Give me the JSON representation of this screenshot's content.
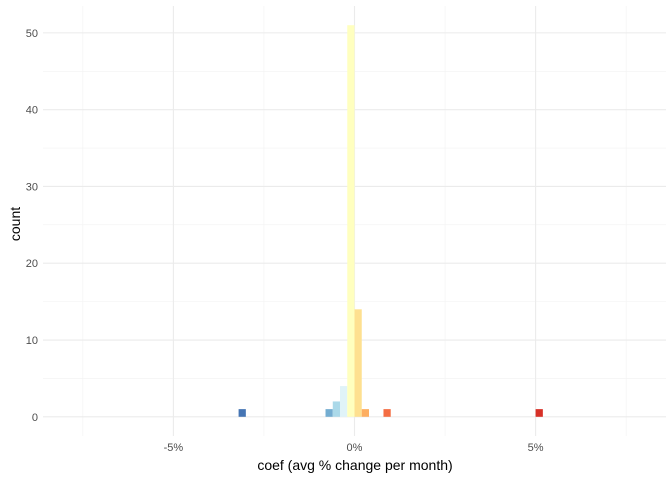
{
  "chart_data": {
    "type": "bar",
    "xlabel": "coef (avg % change per month)",
    "ylabel": "count",
    "xlim": [
      -8.6,
      8.6
    ],
    "ylim": [
      -2.5,
      53.5
    ],
    "x_ticks": [
      {
        "value": -5,
        "label": "-5%"
      },
      {
        "value": 0,
        "label": "0%"
      },
      {
        "value": 5,
        "label": "5%"
      }
    ],
    "x_minor_ticks": [
      -7.5,
      -2.5,
      2.5,
      7.5
    ],
    "y_ticks": [
      0,
      10,
      20,
      30,
      40,
      50
    ],
    "y_minor_ticks": [
      5,
      15,
      25,
      35,
      45
    ],
    "grid": true,
    "bin_width": 0.2,
    "bars": [
      {
        "x": -3.1,
        "count": 1,
        "color": "#4575b4"
      },
      {
        "x": -0.7,
        "count": 1,
        "color": "#74add1"
      },
      {
        "x": -0.5,
        "count": 2,
        "color": "#abd9e9"
      },
      {
        "x": -0.3,
        "count": 4,
        "color": "#e0f3f8"
      },
      {
        "x": -0.1,
        "count": 51,
        "color": "#ffffbf"
      },
      {
        "x": 0.1,
        "count": 14,
        "color": "#fee090"
      },
      {
        "x": 0.3,
        "count": 1,
        "color": "#fdae61"
      },
      {
        "x": 0.9,
        "count": 1,
        "color": "#f46d43"
      },
      {
        "x": 5.1,
        "count": 1,
        "color": "#d73027"
      }
    ]
  }
}
